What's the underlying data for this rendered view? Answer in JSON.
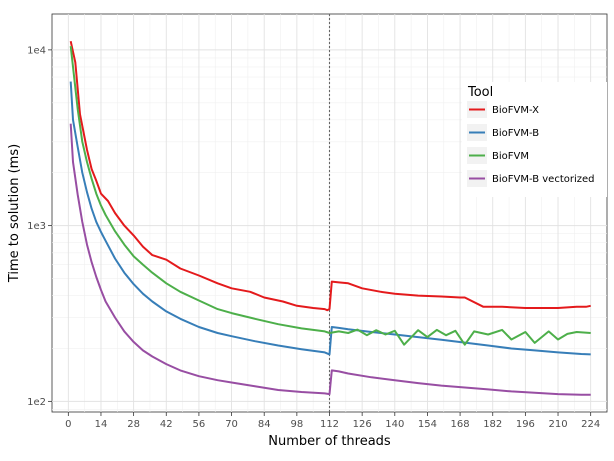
{
  "chart_data": {
    "type": "line",
    "xlabel": "Number of threads",
    "ylabel": "Time to solution (ms)",
    "x_scale": "linear",
    "y_scale": "log",
    "xlim": [
      -7,
      231
    ],
    "ylim": [
      87,
      16000
    ],
    "x_ticks": [
      0,
      14,
      28,
      42,
      56,
      70,
      84,
      98,
      112,
      126,
      140,
      154,
      168,
      182,
      196,
      210,
      224
    ],
    "y_ticks": [
      {
        "value": 100,
        "label": "1e2"
      },
      {
        "value": 1000,
        "label": "1e3"
      },
      {
        "value": 10000,
        "label": "1e4"
      }
    ],
    "vline": {
      "x": 112,
      "style": "dotted"
    },
    "grid": true,
    "legend": {
      "title": "Tool",
      "position": "right-inside"
    },
    "series": [
      {
        "name": "BioFVM-X",
        "color": "#e41a1c",
        "x": [
          1,
          3,
          5,
          8,
          10,
          12,
          14,
          17,
          20,
          24,
          28,
          32,
          36,
          42,
          48,
          56,
          64,
          70,
          78,
          84,
          92,
          98,
          105,
          110,
          111,
          112,
          113,
          116,
          120,
          126,
          134,
          140,
          150,
          160,
          168,
          170,
          178,
          186,
          196,
          204,
          210,
          218,
          222,
          224
        ],
        "y": [
          11200,
          8500,
          4300,
          2700,
          2100,
          1800,
          1520,
          1380,
          1180,
          1000,
          880,
          760,
          680,
          640,
          570,
          520,
          470,
          440,
          420,
          390,
          370,
          350,
          340,
          335,
          330,
          335,
          480,
          475,
          470,
          440,
          420,
          410,
          400,
          395,
          390,
          390,
          345,
          345,
          340,
          340,
          340,
          345,
          345,
          350
        ]
      },
      {
        "name": "BioFVM-B",
        "color": "#377eb8",
        "x": [
          1,
          2,
          4,
          6,
          8,
          10,
          12,
          14,
          16,
          20,
          24,
          28,
          32,
          36,
          42,
          48,
          56,
          64,
          70,
          80,
          90,
          100,
          110,
          112,
          113,
          116,
          120,
          130,
          140,
          150,
          160,
          170,
          180,
          190,
          200,
          210,
          220,
          224
        ],
        "y": [
          6600,
          4000,
          2800,
          2000,
          1550,
          1250,
          1050,
          920,
          820,
          650,
          540,
          465,
          410,
          370,
          325,
          295,
          265,
          245,
          235,
          220,
          208,
          198,
          190,
          185,
          265,
          262,
          257,
          248,
          240,
          232,
          224,
          216,
          208,
          200,
          195,
          190,
          186,
          185
        ]
      },
      {
        "name": "BioFVM",
        "color": "#4daf4a",
        "x": [
          1,
          2,
          4,
          6,
          8,
          10,
          12,
          14,
          16,
          20,
          24,
          28,
          32,
          36,
          42,
          48,
          56,
          64,
          70,
          80,
          90,
          100,
          110,
          112,
          116,
          120,
          124,
          128,
          132,
          136,
          140,
          144,
          150,
          154,
          158,
          162,
          166,
          170,
          174,
          180,
          186,
          190,
          196,
          200,
          206,
          210,
          214,
          218,
          224
        ],
        "y": [
          10500,
          8000,
          4600,
          3000,
          2300,
          1850,
          1520,
          1300,
          1150,
          930,
          780,
          670,
          600,
          540,
          470,
          420,
          375,
          335,
          318,
          295,
          275,
          260,
          250,
          245,
          250,
          245,
          256,
          238,
          254,
          240,
          252,
          210,
          254,
          232,
          255,
          238,
          252,
          210,
          250,
          240,
          255,
          225,
          248,
          215,
          250,
          225,
          242,
          248,
          245
        ]
      },
      {
        "name": "BioFVM-B vectorized",
        "color": "#984ea3",
        "x": [
          1,
          2,
          4,
          6,
          8,
          10,
          12,
          14,
          16,
          20,
          24,
          28,
          32,
          36,
          42,
          48,
          56,
          64,
          70,
          80,
          90,
          100,
          110,
          112,
          113,
          116,
          120,
          130,
          140,
          150,
          160,
          170,
          180,
          190,
          200,
          210,
          220,
          224
        ],
        "y": [
          3800,
          2300,
          1500,
          1050,
          780,
          620,
          510,
          430,
          370,
          300,
          250,
          218,
          195,
          180,
          163,
          150,
          139,
          132,
          128,
          122,
          116,
          113,
          111,
          110,
          150,
          148,
          144,
          137,
          132,
          127,
          123,
          120,
          117,
          114,
          112,
          110,
          109,
          109
        ]
      }
    ]
  }
}
